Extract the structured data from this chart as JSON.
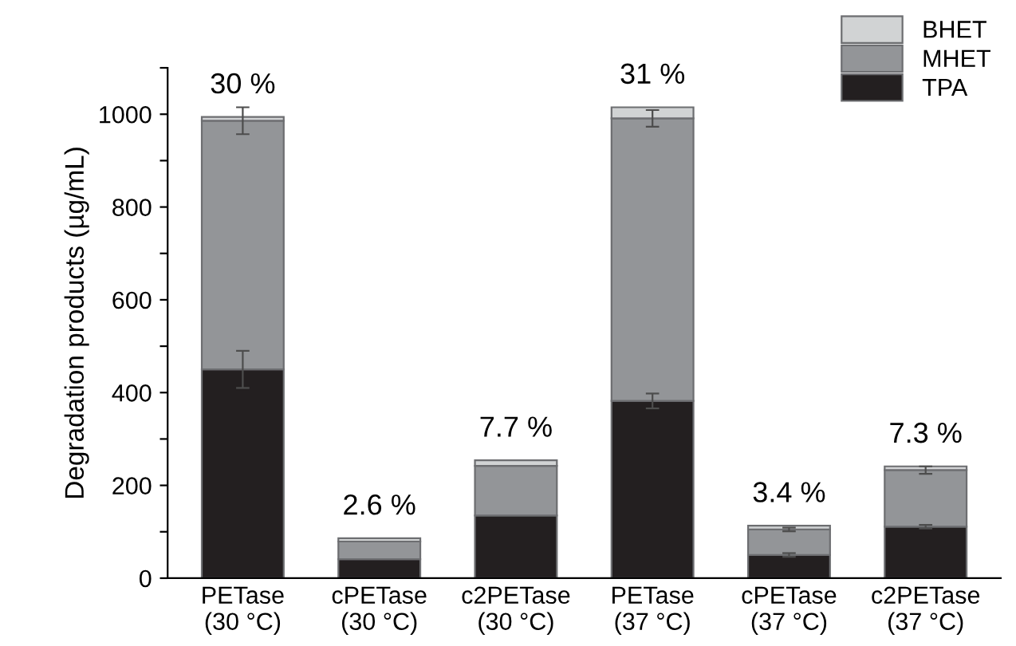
{
  "chart_data": {
    "type": "bar",
    "stacked": true,
    "ylabel": "Degradation products (µg/mL)",
    "categories": [
      "PETase\n(30 °C)",
      "cPETase\n(30 °C)",
      "c2PETase\n(30 °C)",
      "PETase\n(37 °C)",
      "cPETase\n(37 °C)",
      "c2PETase\n(37 °C)"
    ],
    "series": [
      {
        "name": "TPA",
        "color": "#231f20",
        "values": [
          450,
          41,
          135,
          382,
          50,
          111
        ],
        "errors": [
          40,
          null,
          null,
          16,
          4,
          4
        ]
      },
      {
        "name": "MHET",
        "color": "#939598",
        "values": [
          536,
          38,
          107,
          609,
          55,
          122
        ],
        "errors": [
          29,
          null,
          null,
          18,
          4,
          8
        ]
      },
      {
        "name": "BHET",
        "color": "#d1d3d4",
        "values": [
          8,
          7,
          12,
          24,
          8,
          8
        ]
      }
    ],
    "annotations": [
      {
        "text": "30 %",
        "x": "PETase\n(30 °C)",
        "y": 994
      },
      {
        "text": "2.6 %",
        "x": "cPETase\n(30 °C)",
        "y": 86
      },
      {
        "text": "7.7 %",
        "x": "c2PETase\n(30 °C)",
        "y": 254
      },
      {
        "text": "31 %",
        "x": "PETase\n(37 °C)",
        "y": 1015
      },
      {
        "text": "3.4 %",
        "x": "cPETase\n(37 °C)",
        "y": 113
      },
      {
        "text": "7.3 %",
        "x": "c2PETase\n(37 °C)",
        "y": 241
      }
    ],
    "ylim": [
      0,
      1100
    ],
    "yticks": [
      0,
      {
        "value": 100,
        "label": null
      },
      200,
      {
        "value": 300,
        "label": null
      },
      400,
      {
        "value": 500,
        "label": null
      },
      600,
      {
        "value": 700,
        "label": null
      },
      800,
      {
        "value": 900,
        "label": null
      },
      1000,
      {
        "value": 1100,
        "label": null
      }
    ],
    "legend": "top right",
    "grid": false
  }
}
